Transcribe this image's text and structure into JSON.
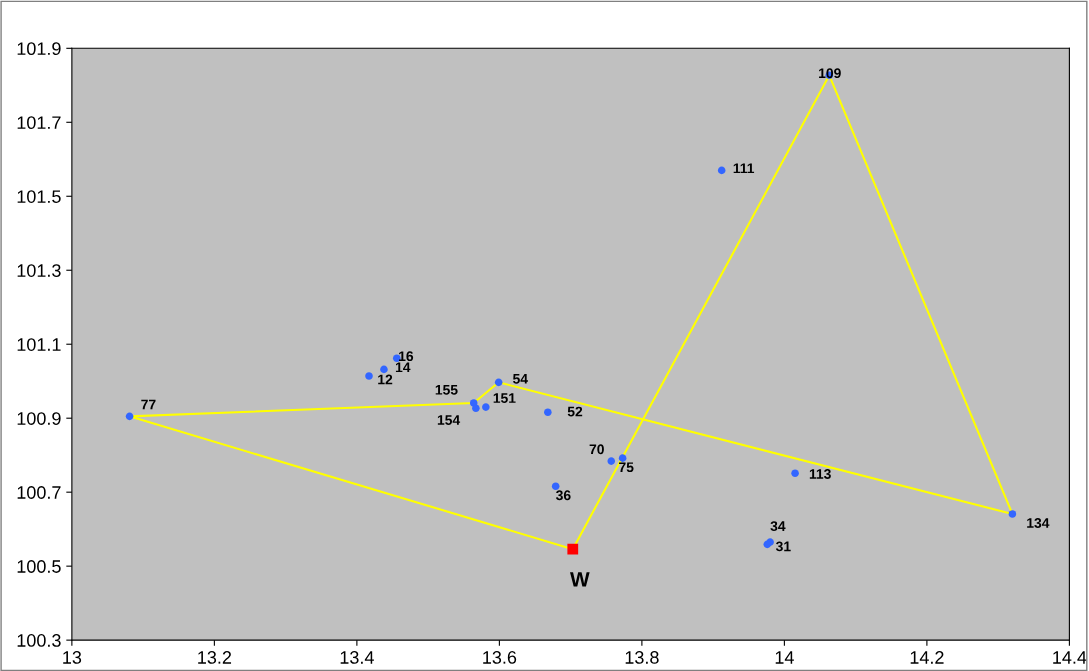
{
  "chart_data": {
    "type": "scatter",
    "xlim": [
      13,
      14.4
    ],
    "xticks": [
      13,
      13.2,
      13.4,
      13.6,
      13.8,
      14,
      14.2,
      14.4
    ],
    "ylim": [
      100.3,
      101.9
    ],
    "yticks": [
      100.3,
      100.5,
      100.7,
      100.9,
      101.1,
      101.3,
      101.5,
      101.7,
      101.9
    ],
    "grid": false,
    "legend": false,
    "marker": "circle",
    "series": [
      {
        "type": "line",
        "marker": "none",
        "color": "#ffff00",
        "x": [
          13.081,
          13.564,
          13.599,
          14.32
        ],
        "values": [
          100.905,
          100.941,
          100.997,
          100.641
        ]
      },
      {
        "type": "line",
        "marker": "none",
        "color": "#ffff00",
        "x": [
          13.081,
          13.703,
          14.063,
          14.32
        ],
        "values": [
          100.905,
          100.546,
          101.827,
          100.641
        ]
      },
      {
        "color": "#3366ff",
        "x": [
          13.081,
          13.417,
          13.438,
          13.456,
          13.564,
          13.567,
          13.581,
          13.599,
          13.668,
          13.679,
          13.757,
          13.773,
          14.015,
          13.98,
          13.976,
          14.32,
          13.912,
          14.063
        ],
        "values": [
          100.905,
          101.014,
          101.032,
          101.062,
          100.941,
          100.927,
          100.93,
          100.997,
          100.916,
          100.716,
          100.784,
          100.792,
          100.751,
          100.565,
          100.559,
          100.641,
          101.57,
          101.827
        ]
      },
      {
        "color": "#ff0000",
        "marker": "square",
        "x": [
          13.703
        ],
        "values": [
          100.546
        ]
      }
    ],
    "annotations": [
      {
        "text": "77",
        "x": 13.081,
        "y": 100.905
      },
      {
        "text": "12",
        "x": 13.417,
        "y": 101.014
      },
      {
        "text": "14",
        "x": 13.438,
        "y": 101.032
      },
      {
        "text": "16",
        "x": 13.456,
        "y": 101.062
      },
      {
        "text": "155",
        "x": 13.564,
        "y": 100.941
      },
      {
        "text": "154",
        "x": 13.567,
        "y": 100.927
      },
      {
        "text": "151",
        "x": 13.581,
        "y": 100.93
      },
      {
        "text": "54",
        "x": 13.599,
        "y": 100.997
      },
      {
        "text": "52",
        "x": 13.668,
        "y": 100.916
      },
      {
        "text": "36",
        "x": 13.679,
        "y": 100.716
      },
      {
        "text": "70",
        "x": 13.757,
        "y": 100.784
      },
      {
        "text": "75",
        "x": 13.773,
        "y": 100.792
      },
      {
        "text": "113",
        "x": 14.015,
        "y": 100.751
      },
      {
        "text": "34",
        "x": 13.98,
        "y": 100.565
      },
      {
        "text": "31",
        "x": 13.976,
        "y": 100.559
      },
      {
        "text": "134",
        "x": 14.32,
        "y": 100.641
      },
      {
        "text": "111",
        "x": 13.912,
        "y": 101.57
      },
      {
        "text": "109",
        "x": 14.063,
        "y": 101.827
      },
      {
        "text": "W",
        "x": 13.703,
        "y": 100.546
      }
    ]
  }
}
